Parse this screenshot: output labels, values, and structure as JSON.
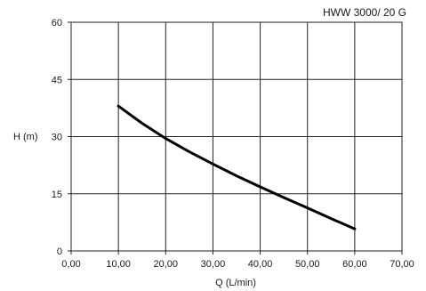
{
  "chart_data": {
    "type": "line",
    "title": "HWW 3000/ 20 G",
    "xlabel": "Q (L/min)",
    "ylabel": "H (m)",
    "xlim": [
      0,
      70
    ],
    "ylim": [
      0,
      60
    ],
    "grid": true,
    "x_ticks": [
      0,
      10,
      20,
      30,
      40,
      50,
      60,
      70
    ],
    "x_tick_labels": [
      "0,00",
      "10,00",
      "20,00",
      "30,00",
      "40,00",
      "50,00",
      "60,00",
      "70,00"
    ],
    "y_ticks": [
      0,
      15,
      30,
      45,
      60
    ],
    "y_tick_labels": [
      "0",
      "15",
      "30",
      "45",
      "60"
    ],
    "series": [
      {
        "color": "#000000",
        "x": [
          10,
          15,
          20,
          25,
          30,
          35,
          40,
          45,
          50,
          55,
          60
        ],
        "y": [
          38,
          33.5,
          29.5,
          26,
          22.8,
          19.7,
          16.8,
          14,
          11.3,
          8.5,
          5.8
        ]
      }
    ]
  }
}
